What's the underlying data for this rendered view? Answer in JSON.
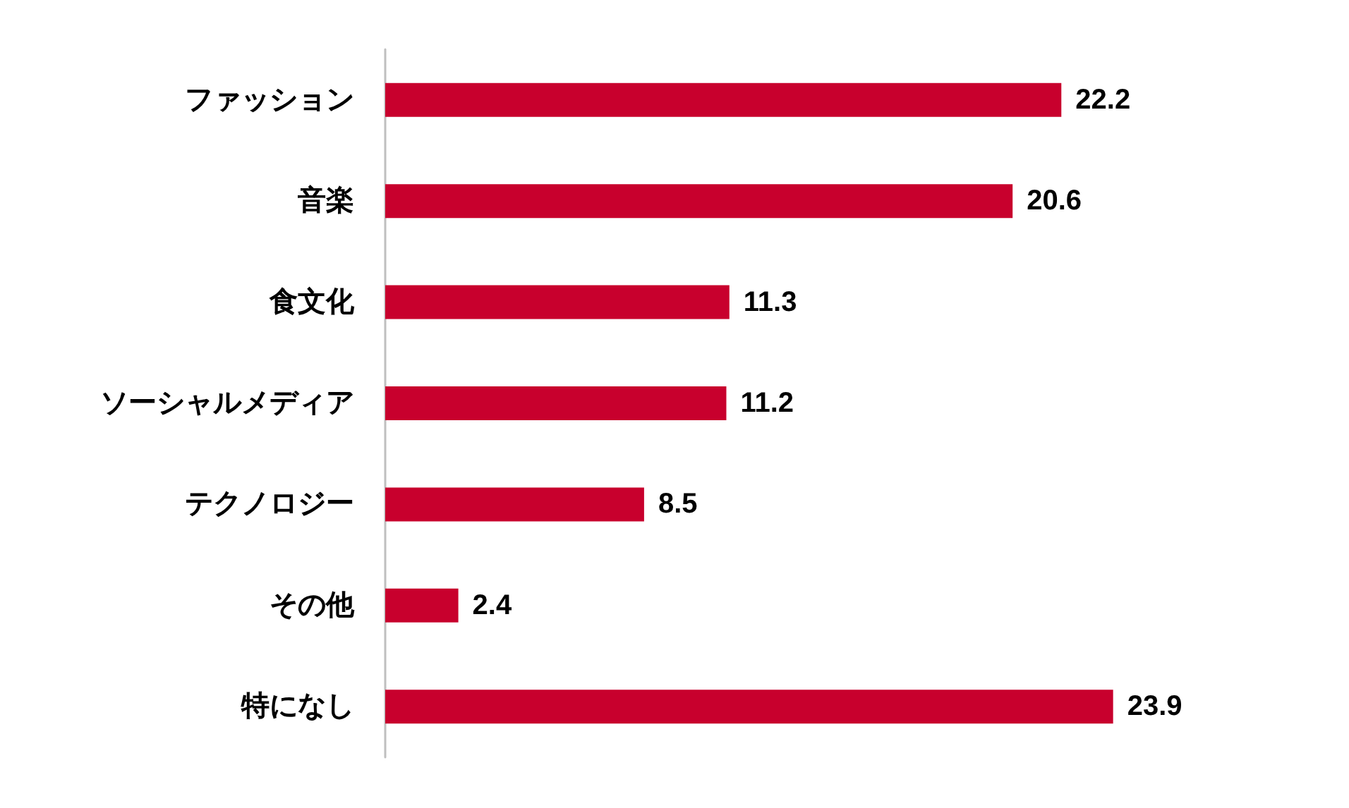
{
  "chart_data": {
    "type": "bar",
    "orientation": "horizontal",
    "categories": [
      "ファッション",
      "音楽",
      "食文化",
      "ソーシャルメディア",
      "テクノロジー",
      "その他",
      "特になし"
    ],
    "values": [
      22.2,
      20.6,
      11.3,
      11.2,
      8.5,
      2.4,
      23.9
    ],
    "color": "#c8002d",
    "data_labels": true
  }
}
